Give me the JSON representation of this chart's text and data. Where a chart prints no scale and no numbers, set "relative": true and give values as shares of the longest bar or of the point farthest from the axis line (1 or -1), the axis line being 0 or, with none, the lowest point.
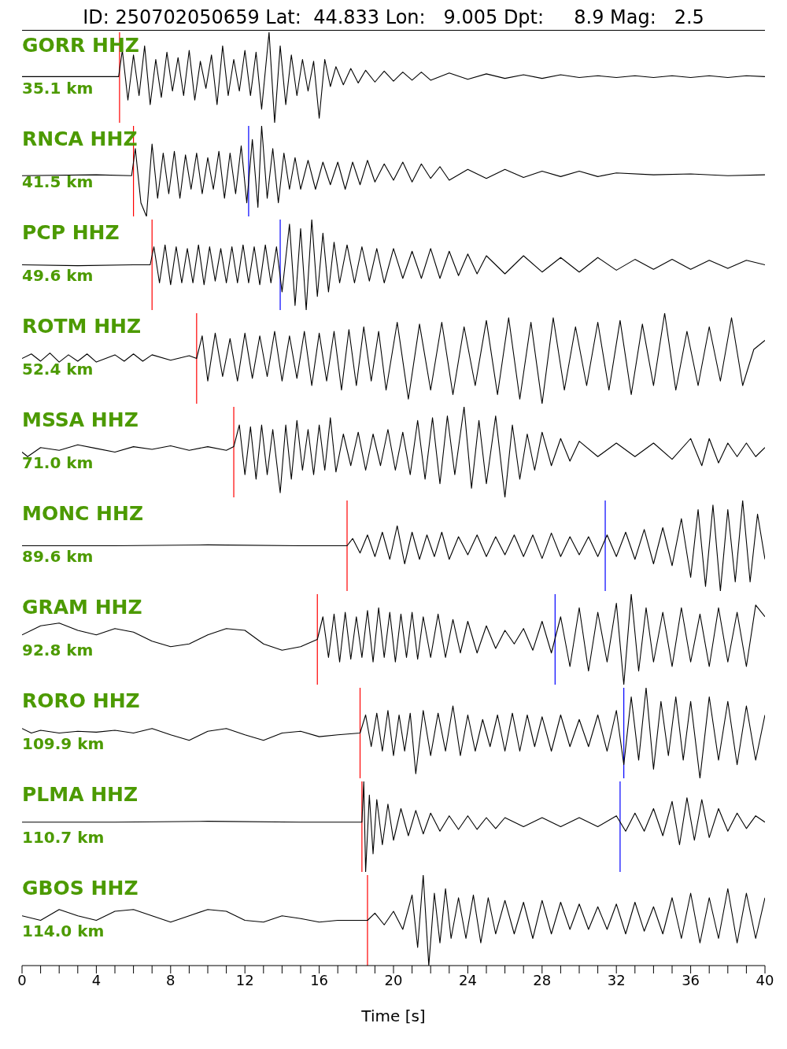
{
  "chart_data": [
    {
      "type": "line",
      "title": "GORR HHZ",
      "subtitle": "35.1 km",
      "annotations": [
        "ID: 250702050659 Lat:  44.833 Lon:   9.005 Dpt:     8.9 Mag:   2.5"
      ],
      "relative": true,
      "color": "#000000",
      "xlim": [
        0,
        40
      ],
      "tick_labels": false,
      "ref_lines": [
        {
          "axis": "x",
          "value": 5.25,
          "color": "#ff0000"
        }
      ],
      "x": [
        0,
        5.2,
        5.4,
        5.7,
        6.0,
        6.3,
        6.6,
        6.9,
        7.2,
        7.5,
        7.8,
        8.1,
        8.4,
        8.7,
        9.0,
        9.3,
        9.6,
        9.9,
        10.2,
        10.5,
        10.8,
        11.1,
        11.4,
        11.7,
        12.0,
        12.3,
        12.6,
        12.9,
        13.3,
        13.6,
        13.9,
        14.2,
        14.5,
        14.8,
        15.1,
        15.4,
        15.7,
        16.0,
        16.3,
        16.6,
        16.9,
        17.3,
        17.7,
        18.1,
        18.5,
        19,
        19.5,
        20,
        20.5,
        21,
        21.5,
        22,
        23,
        24,
        25,
        26,
        27,
        28,
        29,
        30,
        31,
        32,
        33,
        34,
        35,
        36,
        37,
        38,
        39,
        40
      ],
      "values": [
        0.51,
        0.51,
        0.8,
        0.25,
        0.75,
        0.3,
        0.85,
        0.2,
        0.7,
        0.28,
        0.78,
        0.35,
        0.72,
        0.3,
        0.8,
        0.25,
        0.68,
        0.38,
        0.75,
        0.2,
        0.85,
        0.3,
        0.7,
        0.35,
        0.8,
        0.3,
        0.78,
        0.15,
        1.0,
        0.0,
        0.85,
        0.2,
        0.75,
        0.3,
        0.7,
        0.35,
        0.68,
        0.05,
        0.7,
        0.4,
        0.62,
        0.42,
        0.6,
        0.44,
        0.58,
        0.45,
        0.57,
        0.46,
        0.56,
        0.47,
        0.56,
        0.47,
        0.55,
        0.48,
        0.54,
        0.49,
        0.53,
        0.49,
        0.53,
        0.5,
        0.52,
        0.5,
        0.52,
        0.5,
        0.52,
        0.5,
        0.52,
        0.5,
        0.52,
        0.51
      ]
    },
    {
      "type": "line",
      "title": "RNCA HHZ",
      "subtitle": "41.5 km",
      "relative": true,
      "color": "#000000",
      "xlim": [
        0,
        40
      ],
      "tick_labels": false,
      "ref_lines": [
        {
          "axis": "x",
          "value": 6.0,
          "color": "#ff0000"
        },
        {
          "axis": "x",
          "value": 12.2,
          "color": "#0000ff"
        }
      ],
      "x": [
        0,
        4,
        5.9,
        6.1,
        6.4,
        6.7,
        7.0,
        7.3,
        7.6,
        7.9,
        8.2,
        8.5,
        8.8,
        9.1,
        9.4,
        9.7,
        10,
        10.3,
        10.6,
        10.9,
        11.2,
        11.5,
        11.8,
        12.1,
        12.4,
        12.7,
        12.9,
        13.2,
        13.5,
        13.8,
        14.1,
        14.4,
        14.7,
        15,
        15.4,
        15.8,
        16.2,
        16.6,
        17,
        17.4,
        17.8,
        18.2,
        18.6,
        19,
        19.5,
        20,
        20.5,
        21,
        21.5,
        22,
        22.5,
        23,
        24,
        25,
        26,
        27,
        28,
        29,
        30,
        31,
        32,
        34,
        36,
        38,
        40
      ],
      "values": [
        0.45,
        0.46,
        0.45,
        0.75,
        0.15,
        0.0,
        0.8,
        0.2,
        0.7,
        0.25,
        0.72,
        0.2,
        0.68,
        0.3,
        0.7,
        0.25,
        0.65,
        0.3,
        0.72,
        0.2,
        0.7,
        0.25,
        0.78,
        0.15,
        0.85,
        0.1,
        1.0,
        0.2,
        0.75,
        0.15,
        0.7,
        0.3,
        0.65,
        0.3,
        0.62,
        0.3,
        0.6,
        0.35,
        0.6,
        0.3,
        0.6,
        0.35,
        0.62,
        0.38,
        0.58,
        0.4,
        0.6,
        0.38,
        0.58,
        0.42,
        0.55,
        0.4,
        0.52,
        0.42,
        0.52,
        0.43,
        0.5,
        0.44,
        0.5,
        0.44,
        0.48,
        0.46,
        0.47,
        0.45,
        0.46
      ]
    },
    {
      "type": "line",
      "title": "PCP HHZ",
      "subtitle": "49.6 km",
      "relative": true,
      "color": "#000000",
      "xlim": [
        0,
        40
      ],
      "tick_labels": false,
      "ref_lines": [
        {
          "axis": "x",
          "value": 7.0,
          "color": "#ff0000"
        },
        {
          "axis": "x",
          "value": 13.9,
          "color": "#0000ff"
        }
      ],
      "x": [
        0,
        3,
        6,
        6.9,
        7.1,
        7.4,
        7.7,
        8,
        8.3,
        8.6,
        8.9,
        9.2,
        9.5,
        9.8,
        10.1,
        10.4,
        10.7,
        11,
        11.3,
        11.6,
        11.9,
        12.2,
        12.5,
        12.8,
        13.1,
        13.4,
        13.7,
        14,
        14.4,
        14.7,
        15,
        15.3,
        15.6,
        15.9,
        16.2,
        16.5,
        16.8,
        17.1,
        17.5,
        17.9,
        18.3,
        18.7,
        19.1,
        19.5,
        20,
        20.5,
        21,
        21.5,
        22,
        22.5,
        23,
        23.5,
        24,
        24.5,
        25,
        26,
        27,
        28,
        29,
        30,
        31,
        32,
        33,
        34,
        35,
        36,
        37,
        38,
        39,
        40
      ],
      "values": [
        0.5,
        0.49,
        0.5,
        0.5,
        0.7,
        0.3,
        0.72,
        0.28,
        0.7,
        0.3,
        0.68,
        0.3,
        0.72,
        0.28,
        0.7,
        0.32,
        0.68,
        0.3,
        0.7,
        0.3,
        0.72,
        0.3,
        0.7,
        0.28,
        0.72,
        0.3,
        0.7,
        0.2,
        0.95,
        0.05,
        0.9,
        0.0,
        1.0,
        0.15,
        0.85,
        0.2,
        0.75,
        0.3,
        0.72,
        0.3,
        0.7,
        0.32,
        0.68,
        0.3,
        0.68,
        0.35,
        0.65,
        0.35,
        0.68,
        0.35,
        0.65,
        0.38,
        0.62,
        0.4,
        0.6,
        0.4,
        0.6,
        0.42,
        0.58,
        0.42,
        0.58,
        0.44,
        0.56,
        0.45,
        0.56,
        0.45,
        0.55,
        0.46,
        0.55,
        0.5
      ]
    },
    {
      "type": "line",
      "title": "ROTM HHZ",
      "subtitle": "52.4 km",
      "relative": true,
      "color": "#000000",
      "xlim": [
        0,
        40
      ],
      "tick_labels": false,
      "ref_lines": [
        {
          "axis": "x",
          "value": 9.4,
          "color": "#ff0000"
        }
      ],
      "x": [
        0,
        0.5,
        1,
        1.5,
        2,
        2.5,
        3,
        3.5,
        4,
        5,
        5.5,
        6,
        6.5,
        7,
        8,
        9,
        9.4,
        9.7,
        10,
        10.4,
        10.8,
        11.2,
        11.6,
        12,
        12.4,
        12.8,
        13.2,
        13.6,
        14,
        14.4,
        14.8,
        15.2,
        15.6,
        16,
        16.4,
        16.8,
        17.2,
        17.6,
        18,
        18.4,
        18.8,
        19.2,
        19.6,
        20.2,
        20.8,
        21.4,
        22,
        22.6,
        23.2,
        23.8,
        24.4,
        25,
        25.6,
        26.2,
        26.8,
        27.4,
        28,
        28.6,
        29.2,
        29.8,
        30.4,
        31,
        31.6,
        32.2,
        32.8,
        33.4,
        34,
        34.6,
        35.2,
        35.8,
        36.4,
        37,
        37.6,
        38.2,
        38.8,
        39.4,
        40
      ],
      "values": [
        0.5,
        0.55,
        0.47,
        0.56,
        0.46,
        0.54,
        0.47,
        0.55,
        0.46,
        0.54,
        0.47,
        0.55,
        0.47,
        0.54,
        0.48,
        0.53,
        0.5,
        0.75,
        0.25,
        0.78,
        0.3,
        0.72,
        0.25,
        0.78,
        0.28,
        0.75,
        0.3,
        0.8,
        0.25,
        0.75,
        0.28,
        0.8,
        0.2,
        0.78,
        0.25,
        0.8,
        0.15,
        0.82,
        0.2,
        0.85,
        0.25,
        0.8,
        0.15,
        0.9,
        0.05,
        0.88,
        0.15,
        0.9,
        0.1,
        0.85,
        0.2,
        0.92,
        0.1,
        0.95,
        0.05,
        0.9,
        0.0,
        0.95,
        0.15,
        0.85,
        0.2,
        0.9,
        0.15,
        0.92,
        0.1,
        0.88,
        0.2,
        1.0,
        0.15,
        0.8,
        0.2,
        0.85,
        0.25,
        0.95,
        0.2,
        0.6,
        0.7
      ]
    },
    {
      "type": "line",
      "title": "MSSA HHZ",
      "subtitle": "71.0 km",
      "relative": true,
      "color": "#000000",
      "xlim": [
        0,
        40
      ],
      "tick_labels": false,
      "ref_lines": [
        {
          "axis": "x",
          "value": 11.4,
          "color": "#ff0000"
        }
      ],
      "x": [
        0,
        0.3,
        1,
        2,
        3,
        4,
        5,
        6,
        7,
        8,
        9,
        10,
        11,
        11.4,
        11.7,
        12,
        12.3,
        12.6,
        12.9,
        13.2,
        13.5,
        13.9,
        14.2,
        14.5,
        14.8,
        15.1,
        15.4,
        15.7,
        16,
        16.3,
        16.6,
        16.9,
        17.3,
        17.7,
        18.1,
        18.5,
        18.9,
        19.3,
        19.7,
        20.1,
        20.5,
        20.9,
        21.3,
        21.7,
        22.1,
        22.5,
        22.9,
        23.3,
        23.8,
        24.2,
        24.6,
        25,
        25.5,
        26,
        26.4,
        26.8,
        27.2,
        27.6,
        28,
        28.5,
        29,
        29.5,
        30,
        31,
        32,
        33,
        34,
        35,
        36,
        36.6,
        37,
        37.5,
        38,
        38.5,
        39,
        39.5,
        40
      ],
      "values": [
        0.5,
        0.45,
        0.55,
        0.52,
        0.58,
        0.54,
        0.5,
        0.56,
        0.53,
        0.57,
        0.52,
        0.56,
        0.52,
        0.56,
        0.8,
        0.25,
        0.78,
        0.2,
        0.8,
        0.25,
        0.75,
        0.05,
        0.8,
        0.2,
        0.85,
        0.3,
        0.75,
        0.25,
        0.8,
        0.3,
        0.88,
        0.28,
        0.7,
        0.35,
        0.72,
        0.3,
        0.7,
        0.35,
        0.75,
        0.3,
        0.72,
        0.25,
        0.85,
        0.2,
        0.88,
        0.15,
        0.9,
        0.25,
        1.0,
        0.1,
        0.85,
        0.15,
        0.9,
        0.0,
        0.8,
        0.2,
        0.7,
        0.3,
        0.72,
        0.35,
        0.65,
        0.4,
        0.62,
        0.45,
        0.6,
        0.45,
        0.6,
        0.42,
        0.65,
        0.35,
        0.65,
        0.38,
        0.6,
        0.45,
        0.6,
        0.45,
        0.55
      ]
    },
    {
      "type": "line",
      "title": "MONC HHZ",
      "subtitle": "89.6 km",
      "relative": true,
      "color": "#000000",
      "xlim": [
        0,
        40
      ],
      "tick_labels": false,
      "ref_lines": [
        {
          "axis": "x",
          "value": 17.5,
          "color": "#ff0000"
        },
        {
          "axis": "x",
          "value": 31.4,
          "color": "#0000ff"
        }
      ],
      "x": [
        0,
        5,
        10,
        15,
        17.5,
        17.8,
        18.2,
        18.6,
        19,
        19.4,
        19.8,
        20.2,
        20.6,
        21,
        21.4,
        21.8,
        22.2,
        22.6,
        23,
        23.5,
        24,
        24.5,
        25,
        25.5,
        26,
        26.5,
        27,
        27.5,
        28,
        28.5,
        29,
        29.5,
        30,
        30.5,
        31,
        31.5,
        32,
        32.5,
        33,
        33.5,
        34,
        34.5,
        35,
        35.5,
        36,
        36.4,
        36.8,
        37.2,
        37.6,
        38,
        38.4,
        38.8,
        39.2,
        39.6,
        40
      ],
      "values": [
        0.5,
        0.5,
        0.51,
        0.5,
        0.5,
        0.58,
        0.42,
        0.62,
        0.38,
        0.65,
        0.35,
        0.72,
        0.3,
        0.65,
        0.35,
        0.62,
        0.38,
        0.65,
        0.35,
        0.6,
        0.4,
        0.62,
        0.38,
        0.6,
        0.4,
        0.62,
        0.38,
        0.62,
        0.36,
        0.64,
        0.38,
        0.6,
        0.4,
        0.6,
        0.38,
        0.62,
        0.38,
        0.65,
        0.35,
        0.68,
        0.3,
        0.7,
        0.28,
        0.8,
        0.15,
        0.9,
        0.05,
        0.95,
        0.0,
        0.9,
        0.1,
        1.0,
        0.1,
        0.85,
        0.35
      ]
    },
    {
      "type": "line",
      "title": "GRAM HHZ",
      "subtitle": "92.8 km",
      "relative": true,
      "color": "#000000",
      "xlim": [
        0,
        40
      ],
      "tick_labels": false,
      "ref_lines": [
        {
          "axis": "x",
          "value": 15.9,
          "color": "#ff0000"
        },
        {
          "axis": "x",
          "value": 28.7,
          "color": "#0000ff"
        }
      ],
      "x": [
        0,
        1,
        2,
        3,
        4,
        5,
        6,
        7,
        8,
        9,
        10,
        11,
        12,
        13,
        14,
        15,
        15.9,
        16.2,
        16.5,
        16.8,
        17.1,
        17.4,
        17.7,
        18,
        18.3,
        18.6,
        18.9,
        19.2,
        19.5,
        19.8,
        20.1,
        20.4,
        20.7,
        21,
        21.3,
        21.6,
        22,
        22.4,
        22.8,
        23.2,
        23.6,
        24,
        24.5,
        25,
        25.5,
        26,
        26.5,
        27,
        27.5,
        28,
        28.5,
        29,
        29.5,
        30,
        30.5,
        31,
        31.5,
        32,
        32.4,
        32.8,
        33.2,
        33.6,
        34,
        34.5,
        35,
        35.5,
        36,
        36.5,
        37,
        37.5,
        38,
        38.5,
        39,
        39.5,
        40
      ],
      "values": [
        0.55,
        0.65,
        0.68,
        0.6,
        0.55,
        0.62,
        0.58,
        0.48,
        0.42,
        0.45,
        0.55,
        0.62,
        0.6,
        0.45,
        0.38,
        0.42,
        0.5,
        0.75,
        0.3,
        0.78,
        0.25,
        0.8,
        0.28,
        0.75,
        0.3,
        0.82,
        0.25,
        0.85,
        0.3,
        0.8,
        0.25,
        0.78,
        0.3,
        0.8,
        0.28,
        0.75,
        0.3,
        0.78,
        0.3,
        0.72,
        0.35,
        0.7,
        0.35,
        0.65,
        0.4,
        0.6,
        0.45,
        0.62,
        0.38,
        0.7,
        0.35,
        0.75,
        0.2,
        0.85,
        0.15,
        0.8,
        0.25,
        0.9,
        0.0,
        1.0,
        0.15,
        0.85,
        0.25,
        0.8,
        0.2,
        0.85,
        0.25,
        0.78,
        0.2,
        0.85,
        0.25,
        0.8,
        0.2,
        0.88,
        0.75
      ]
    },
    {
      "type": "line",
      "title": "RORO HHZ",
      "subtitle": "109.9 km",
      "relative": true,
      "color": "#000000",
      "xlim": [
        0,
        40
      ],
      "tick_labels": false,
      "ref_lines": [
        {
          "axis": "x",
          "value": 18.2,
          "color": "#ff0000"
        },
        {
          "axis": "x",
          "value": 32.4,
          "color": "#0000ff"
        }
      ],
      "x": [
        0,
        0.5,
        1,
        2,
        3,
        4,
        5,
        6,
        7,
        8,
        9,
        10,
        11,
        12,
        13,
        14,
        15,
        16,
        17,
        18.2,
        18.5,
        18.8,
        19.1,
        19.4,
        19.7,
        20,
        20.3,
        20.6,
        20.9,
        21.2,
        21.6,
        22,
        22.4,
        22.8,
        23.2,
        23.6,
        24,
        24.4,
        24.8,
        25.2,
        25.6,
        26,
        26.4,
        26.8,
        27.2,
        27.6,
        28,
        28.5,
        29,
        29.5,
        30,
        30.5,
        31,
        31.5,
        32,
        32.4,
        32.8,
        33.2,
        33.6,
        34,
        34.4,
        34.8,
        35.2,
        35.6,
        36,
        36.5,
        37,
        37.5,
        38,
        38.5,
        39,
        39.5,
        40
      ],
      "values": [
        0.55,
        0.5,
        0.53,
        0.5,
        0.52,
        0.51,
        0.53,
        0.5,
        0.55,
        0.48,
        0.42,
        0.52,
        0.55,
        0.48,
        0.42,
        0.5,
        0.52,
        0.46,
        0.48,
        0.5,
        0.7,
        0.35,
        0.72,
        0.3,
        0.75,
        0.25,
        0.7,
        0.3,
        0.72,
        0.05,
        0.75,
        0.25,
        0.72,
        0.3,
        0.8,
        0.25,
        0.7,
        0.3,
        0.65,
        0.35,
        0.7,
        0.3,
        0.72,
        0.3,
        0.7,
        0.35,
        0.68,
        0.3,
        0.7,
        0.35,
        0.65,
        0.35,
        0.7,
        0.3,
        0.75,
        0.15,
        0.9,
        0.2,
        1.0,
        0.1,
        0.85,
        0.25,
        0.9,
        0.2,
        0.85,
        0.0,
        0.9,
        0.2,
        0.85,
        0.15,
        0.8,
        0.2,
        0.7
      ]
    },
    {
      "type": "line",
      "title": "PLMA HHZ",
      "subtitle": "110.7 km",
      "relative": true,
      "color": "#000000",
      "xlim": [
        0,
        40
      ],
      "tick_labels": false,
      "ref_lines": [
        {
          "axis": "x",
          "value": 18.3,
          "color": "#ff0000"
        },
        {
          "axis": "x",
          "value": 32.2,
          "color": "#0000ff"
        }
      ],
      "x": [
        0,
        5,
        10,
        15,
        18.3,
        18.4,
        18.5,
        18.7,
        18.9,
        19.1,
        19.4,
        19.7,
        20,
        20.4,
        20.8,
        21.2,
        21.6,
        22,
        22.5,
        23,
        23.5,
        24,
        24.5,
        25,
        25.5,
        26,
        27,
        28,
        29,
        30,
        31,
        32,
        32.5,
        33,
        33.5,
        34,
        34.5,
        35,
        35.4,
        35.8,
        36.2,
        36.6,
        37,
        37.5,
        38,
        38.5,
        39,
        39.5,
        40
      ],
      "values": [
        0.55,
        0.55,
        0.56,
        0.55,
        0.55,
        1.0,
        0.0,
        0.85,
        0.2,
        0.8,
        0.3,
        0.75,
        0.35,
        0.7,
        0.4,
        0.68,
        0.42,
        0.65,
        0.45,
        0.62,
        0.47,
        0.62,
        0.47,
        0.6,
        0.48,
        0.6,
        0.5,
        0.6,
        0.5,
        0.6,
        0.5,
        0.62,
        0.45,
        0.65,
        0.45,
        0.7,
        0.4,
        0.78,
        0.3,
        0.82,
        0.35,
        0.8,
        0.38,
        0.7,
        0.45,
        0.65,
        0.48,
        0.62,
        0.55
      ]
    },
    {
      "type": "line",
      "title": "GBOS HHZ",
      "subtitle": "114.0 km",
      "relative": true,
      "color": "#000000",
      "xlim": [
        0,
        40
      ],
      "tick_labels": "x",
      "xlabel": "Time [s]",
      "xticks": [
        0,
        {
          "value": 1,
          "label": null
        },
        {
          "value": 2,
          "label": null
        },
        {
          "value": 3,
          "label": null
        },
        4,
        {
          "value": 5,
          "label": null
        },
        {
          "value": 6,
          "label": null
        },
        {
          "value": 7,
          "label": null
        },
        8,
        {
          "value": 9,
          "label": null
        },
        {
          "value": 10,
          "label": null
        },
        {
          "value": 11,
          "label": null
        },
        12,
        {
          "value": 13,
          "label": null
        },
        {
          "value": 14,
          "label": null
        },
        {
          "value": 15,
          "label": null
        },
        16,
        {
          "value": 17,
          "label": null
        },
        {
          "value": 18,
          "label": null
        },
        {
          "value": 19,
          "label": null
        },
        20,
        {
          "value": 21,
          "label": null
        },
        {
          "value": 22,
          "label": null
        },
        {
          "value": 23,
          "label": null
        },
        24,
        {
          "value": 25,
          "label": null
        },
        {
          "value": 26,
          "label": null
        },
        {
          "value": 27,
          "label": null
        },
        28,
        {
          "value": 29,
          "label": null
        },
        {
          "value": 30,
          "label": null
        },
        {
          "value": 31,
          "label": null
        },
        32,
        {
          "value": 33,
          "label": null
        },
        {
          "value": 34,
          "label": null
        },
        {
          "value": 35,
          "label": null
        },
        36,
        {
          "value": 37,
          "label": null
        },
        {
          "value": 38,
          "label": null
        },
        {
          "value": 39,
          "label": null
        },
        40
      ],
      "ref_lines": [
        {
          "axis": "x",
          "value": 18.6,
          "color": "#ff0000"
        }
      ],
      "x": [
        0,
        1,
        2,
        3,
        4,
        5,
        6,
        7,
        8,
        9,
        10,
        11,
        12,
        13,
        14,
        15,
        16,
        17,
        18.6,
        19,
        19.5,
        20,
        20.5,
        21,
        21.3,
        21.6,
        21.9,
        22.2,
        22.5,
        22.8,
        23.1,
        23.5,
        23.9,
        24.3,
        24.7,
        25.1,
        25.5,
        26,
        26.5,
        27,
        27.5,
        28,
        28.5,
        29,
        29.5,
        30,
        30.5,
        31,
        31.5,
        32,
        32.5,
        33,
        33.5,
        34,
        34.5,
        35,
        35.5,
        36,
        36.5,
        37,
        37.5,
        38,
        38.5,
        39,
        39.5,
        40
      ],
      "values": [
        0.55,
        0.5,
        0.62,
        0.55,
        0.5,
        0.6,
        0.62,
        0.55,
        0.48,
        0.55,
        0.62,
        0.6,
        0.5,
        0.48,
        0.55,
        0.52,
        0.48,
        0.5,
        0.5,
        0.58,
        0.45,
        0.6,
        0.4,
        0.78,
        0.2,
        1.0,
        0.0,
        0.8,
        0.25,
        0.85,
        0.3,
        0.75,
        0.3,
        0.78,
        0.25,
        0.75,
        0.35,
        0.72,
        0.35,
        0.7,
        0.3,
        0.72,
        0.35,
        0.7,
        0.4,
        0.68,
        0.4,
        0.65,
        0.4,
        0.68,
        0.35,
        0.7,
        0.38,
        0.65,
        0.35,
        0.75,
        0.3,
        0.8,
        0.25,
        0.75,
        0.3,
        0.85,
        0.25,
        0.8,
        0.3,
        0.75
      ]
    }
  ]
}
